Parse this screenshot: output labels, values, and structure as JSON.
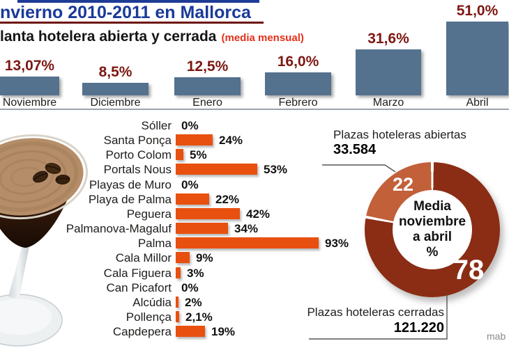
{
  "page": {
    "credit": "mab"
  },
  "header": {
    "title": "nvierno 2010-2011 en Mallorca",
    "subtitle": "lanta hotelera abierta y cerrada",
    "subtitle_note": "(media mensual)"
  },
  "colors": {
    "title_blue": "#1a3a99",
    "title_underline": "#6d140e",
    "subtitle_note_red": "#e5301a",
    "month_bar": "#54718e",
    "month_value": "#7d1712",
    "resort_bar": "#e8500f",
    "donut_dark": "#8a2d14",
    "donut_light": "#c2603a"
  },
  "chart_data": [
    {
      "type": "bar",
      "name": "monthly-open-hotel-plant",
      "title": "lanta hotelera abierta y cerrada (media mensual)",
      "categories": [
        "Noviembre",
        "Diciembre",
        "Enero",
        "Febrero",
        "Marzo",
        "Abril"
      ],
      "values": [
        13.07,
        8.5,
        12.5,
        16.0,
        31.6,
        51.0
      ],
      "value_labels": [
        "13,07%",
        "8,5%",
        "12,5%",
        "16,0%",
        "31,6%",
        "51,0%"
      ],
      "unit": "%",
      "ylim": [
        0,
        55
      ],
      "grid": false,
      "bar_color": "#54718e"
    },
    {
      "type": "bar",
      "orientation": "horizontal",
      "name": "resorts-open-percentage",
      "categories": [
        "Sóller",
        "Santa Ponça",
        "Porto Colom",
        "Portals Nous",
        "Playas de Muro",
        "Playa de Palma",
        "Peguera",
        "Palmanova-Magaluf",
        "Palma",
        "Cala Millor",
        "Cala Figuera",
        "Can Picafort",
        "Alcúdia",
        "Pollença",
        "Capdepera"
      ],
      "values": [
        0,
        24,
        5,
        53,
        0,
        22,
        42,
        34,
        93,
        9,
        3,
        0,
        2,
        2.1,
        19
      ],
      "value_labels": [
        "0%",
        "24%",
        "5%",
        "53%",
        "0%",
        "22%",
        "42%",
        "34%",
        "93%",
        "9%",
        "3%",
        "0%",
        "2%",
        "2,1%",
        "19%"
      ],
      "unit": "%",
      "xlim": [
        0,
        100
      ],
      "grid": false,
      "bar_color": "#e8500f"
    },
    {
      "type": "pie",
      "name": "open-vs-closed-donut",
      "center_text": [
        "Media",
        "noviembre",
        "a abril",
        "%"
      ],
      "slices": [
        {
          "label": "78",
          "value": 78,
          "color": "#8a2d14",
          "meaning": "plazas cerradas"
        },
        {
          "label": "22",
          "value": 22,
          "color": "#c2603a",
          "meaning": "plazas abiertas"
        }
      ],
      "annotations": [
        {
          "label": "Plazas hoteleras abiertas",
          "value": "33.584"
        },
        {
          "label": "Plazas hoteleras cerradas",
          "value": "121.220"
        }
      ]
    }
  ]
}
